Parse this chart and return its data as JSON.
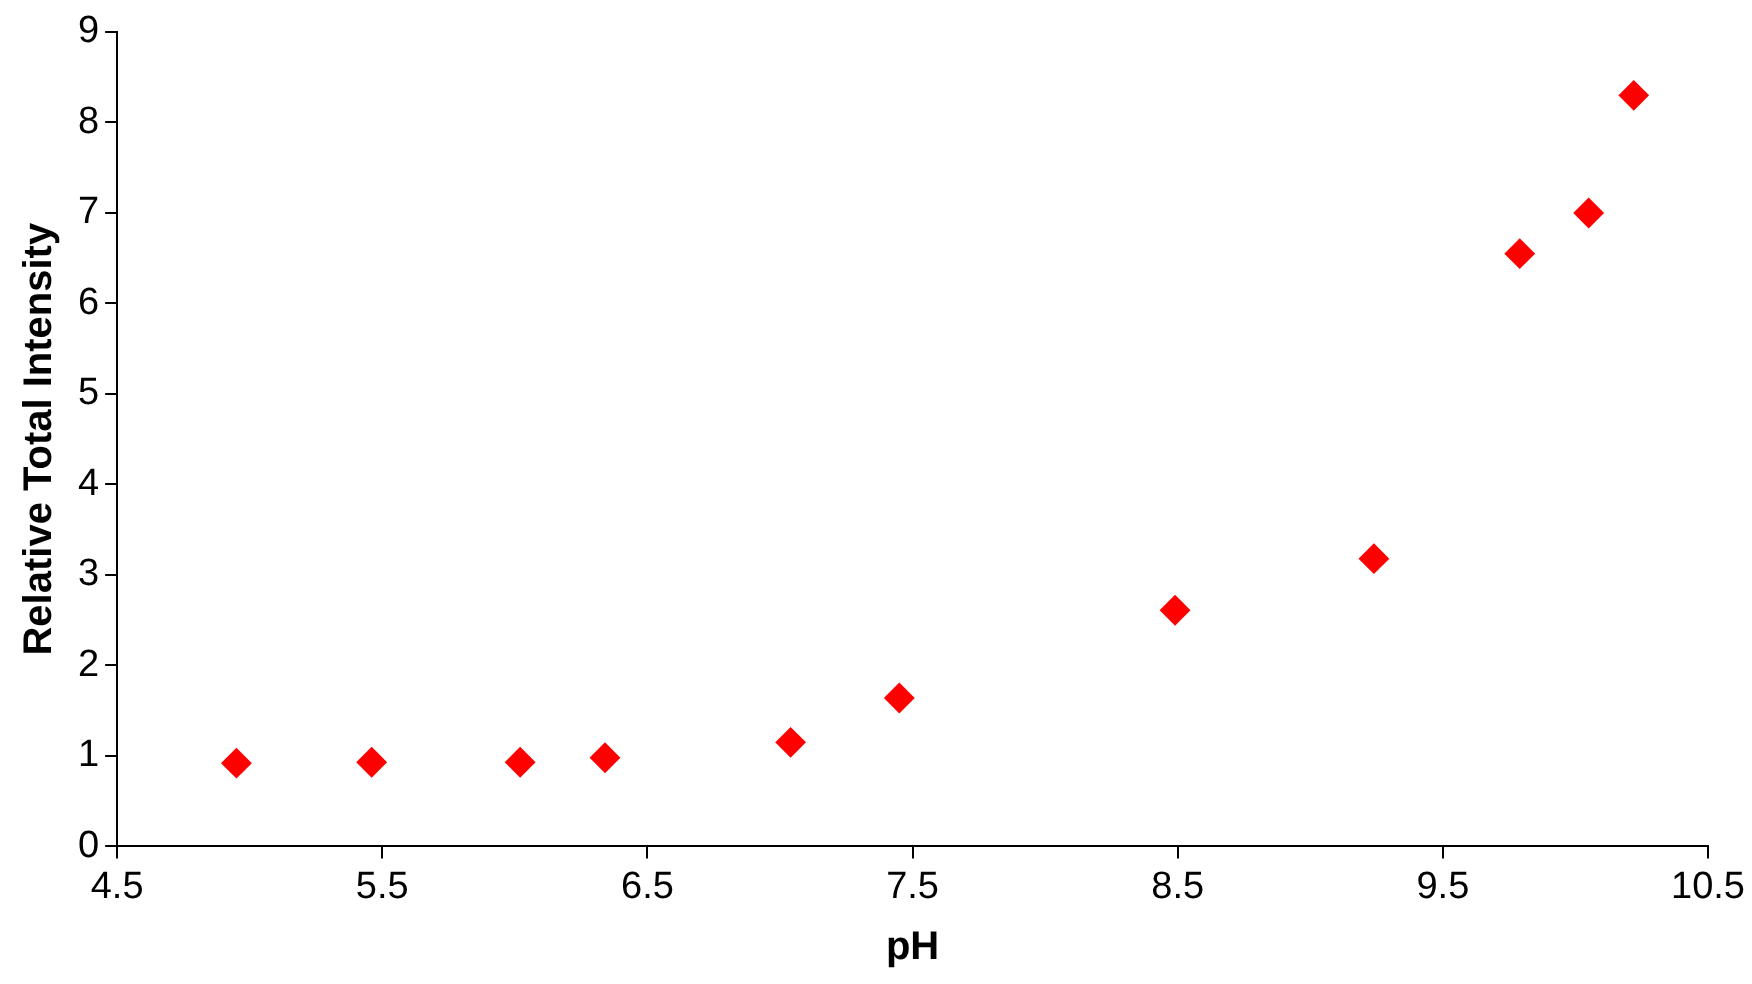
{
  "chart_data": {
    "type": "scatter",
    "xlabel": "pH",
    "ylabel": "Relative Total Intensity",
    "x": [
      4.95,
      5.46,
      6.02,
      6.34,
      7.04,
      7.45,
      8.49,
      9.24,
      9.79,
      10.05,
      10.22
    ],
    "series": [
      {
        "color": "#ff0000",
        "values": [
          0.92,
          0.93,
          0.93,
          0.98,
          1.15,
          1.64,
          2.61,
          3.18,
          6.55,
          7.0,
          8.3
        ]
      }
    ],
    "xlim": [
      4.5,
      10.5
    ],
    "xticks": [
      4.5,
      5.5,
      6.5,
      7.5,
      8.5,
      9.5,
      10.5
    ],
    "ylim": [
      0,
      9
    ],
    "yticks": [
      0,
      1,
      2,
      3,
      4,
      5,
      6,
      7,
      8,
      9
    ],
    "grid": false,
    "legend": false,
    "marker": "diamond"
  }
}
